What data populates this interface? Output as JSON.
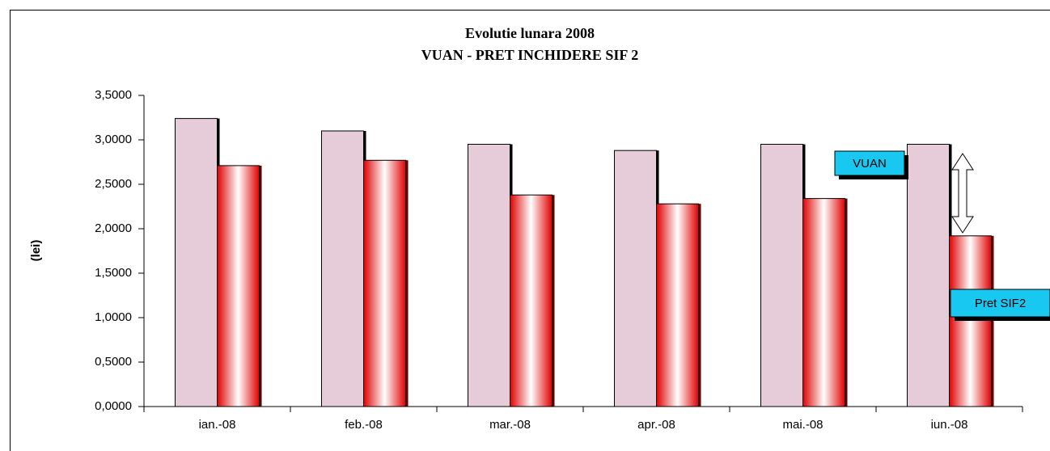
{
  "chart_data": {
    "type": "bar",
    "title": "Evolutie lunara 2008",
    "subtitle": "VUAN - PRET INCHIDERE SIF 2",
    "y_label": "(lei)",
    "categories": [
      "ian.-08",
      "feb.-08",
      "mar.-08",
      "apr.-08",
      "mai.-08",
      "iun.-08"
    ],
    "series": [
      {
        "name": "VUAN",
        "color": "#e6cbd8",
        "values": [
          3.24,
          3.1,
          2.95,
          2.88,
          2.95,
          2.95
        ]
      },
      {
        "name": "Pret SIF2",
        "color": "#ff0000",
        "values": [
          2.71,
          2.77,
          2.38,
          2.28,
          2.34,
          1.92
        ]
      }
    ],
    "ylim": [
      0,
      3.5
    ],
    "yticks": [
      {
        "value": 0,
        "label": "0,0000"
      },
      {
        "value": 0.5,
        "label": "0,5000"
      },
      {
        "value": 1,
        "label": "1,0000"
      },
      {
        "value": 1.5,
        "label": "1,5000"
      },
      {
        "value": 2,
        "label": "2,0000"
      },
      {
        "value": 2.5,
        "label": "2,5000"
      },
      {
        "value": 3,
        "label": "3,0000"
      },
      {
        "value": 3.5,
        "label": "3,5000"
      }
    ]
  }
}
